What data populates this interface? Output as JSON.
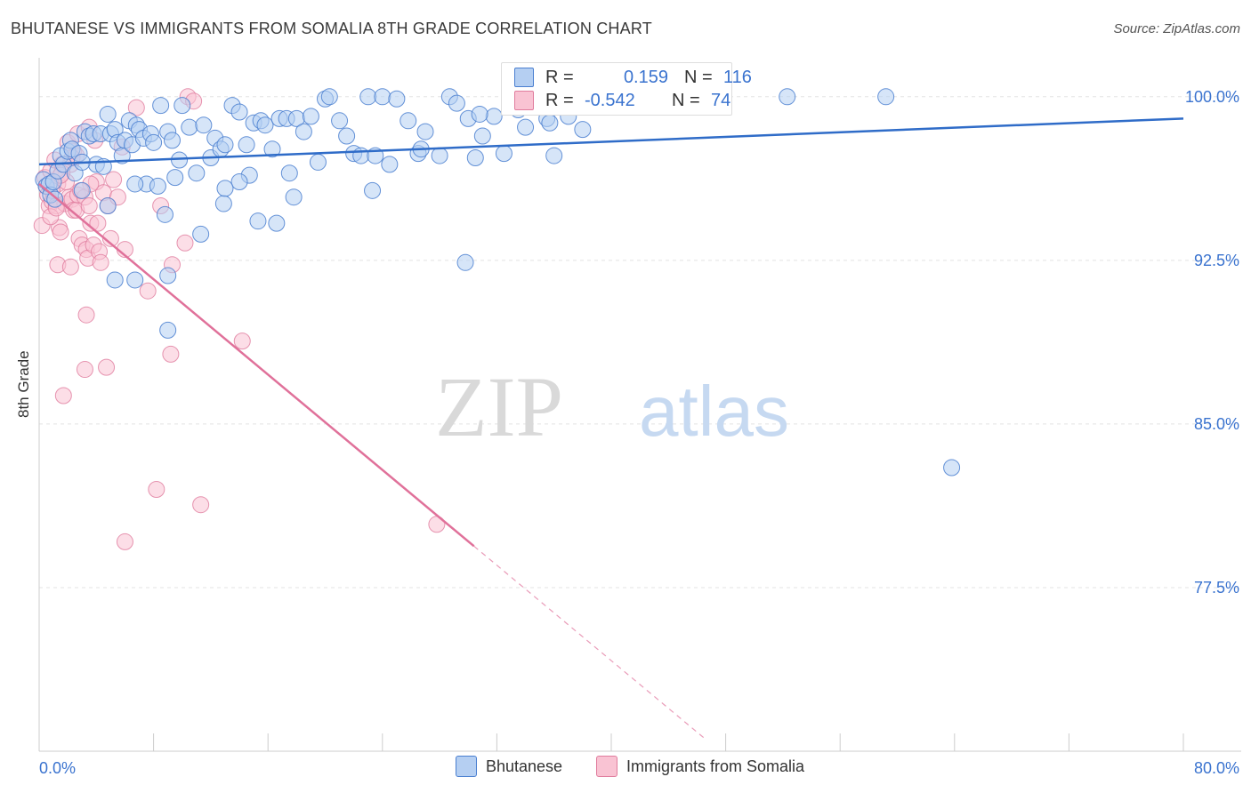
{
  "header": {
    "title": "BHUTANESE VS IMMIGRANTS FROM SOMALIA 8TH GRADE CORRELATION CHART",
    "source": "Source: ZipAtlas.com"
  },
  "stats": {
    "row1": {
      "r_label": "R =",
      "r_value": "0.159",
      "n_label": "N =",
      "n_value": "116"
    },
    "row2": {
      "r_label": "R =",
      "r_value": "-0.542",
      "n_label": "N =",
      "n_value": "74"
    }
  },
  "legend": {
    "series1": "Bhutanese",
    "series2": "Immigrants from Somalia"
  },
  "colors": {
    "blue_fill": "#b5cff2",
    "blue_stroke": "#4a7fd0",
    "blue_line": "#2f6cc8",
    "pink_fill": "#f9c3d3",
    "pink_stroke": "#e07c9d",
    "pink_line": "#e0719a",
    "axis_text": "#3a73cf"
  },
  "watermark": {
    "part1": "ZIP",
    "part2": "atlas"
  },
  "chart_data": {
    "type": "scatter",
    "title": "BHUTANESE VS IMMIGRANTS FROM SOMALIA 8TH GRADE CORRELATION CHART",
    "xlabel": "",
    "ylabel": "8th Grade",
    "xlim": [
      0,
      80
    ],
    "ylim": [
      70,
      101.5
    ],
    "x_tick_labels": [
      "0.0%",
      "80.0%"
    ],
    "y_ticks": [
      77.5,
      85.0,
      92.5,
      100.0
    ],
    "y_tick_labels": [
      "77.5%",
      "85.0%",
      "92.5%",
      "100.0%"
    ],
    "grid": true,
    "legend_position": "bottom",
    "series": [
      {
        "name": "Bhutanese",
        "color": "#b5cff2",
        "trend": {
          "x": [
            0,
            80
          ],
          "y": [
            96.9,
            99.0
          ],
          "dashed_from": null
        },
        "points": [
          [
            0.3,
            96.2
          ],
          [
            0.5,
            95.9
          ],
          [
            0.7,
            96.0
          ],
          [
            0.8,
            95.5
          ],
          [
            1.0,
            96.1
          ],
          [
            1.1,
            95.3
          ],
          [
            1.3,
            96.6
          ],
          [
            1.5,
            97.3
          ],
          [
            1.7,
            96.9
          ],
          [
            2.0,
            97.5
          ],
          [
            2.2,
            98.0
          ],
          [
            2.3,
            97.6
          ],
          [
            2.5,
            96.5
          ],
          [
            2.8,
            97.4
          ],
          [
            3.0,
            95.7
          ],
          [
            3.2,
            98.4
          ],
          [
            3.5,
            98.2
          ],
          [
            3.8,
            98.3
          ],
          [
            4.0,
            96.9
          ],
          [
            4.3,
            98.3
          ],
          [
            4.5,
            96.8
          ],
          [
            4.8,
            99.2
          ],
          [
            5.0,
            98.3
          ],
          [
            5.3,
            98.5
          ],
          [
            5.5,
            97.9
          ],
          [
            5.8,
            97.3
          ],
          [
            6.0,
            98.0
          ],
          [
            6.3,
            98.9
          ],
          [
            6.5,
            97.8
          ],
          [
            6.8,
            98.7
          ],
          [
            7.0,
            98.5
          ],
          [
            7.3,
            98.1
          ],
          [
            7.5,
            96.0
          ],
          [
            7.8,
            98.3
          ],
          [
            8.0,
            97.9
          ],
          [
            8.5,
            99.6
          ],
          [
            9.0,
            98.4
          ],
          [
            9.3,
            98.0
          ],
          [
            9.5,
            96.3
          ],
          [
            9.8,
            97.1
          ],
          [
            10.0,
            99.6
          ],
          [
            10.5,
            98.6
          ],
          [
            11.0,
            96.5
          ],
          [
            11.5,
            98.7
          ],
          [
            12.0,
            97.2
          ],
          [
            12.3,
            98.1
          ],
          [
            12.7,
            97.6
          ],
          [
            13.0,
            97.8
          ],
          [
            13.5,
            99.6
          ],
          [
            14.0,
            99.3
          ],
          [
            14.5,
            97.8
          ],
          [
            14.7,
            96.4
          ],
          [
            15.0,
            98.8
          ],
          [
            15.5,
            98.9
          ],
          [
            15.8,
            98.7
          ],
          [
            16.3,
            97.6
          ],
          [
            16.8,
            99.0
          ],
          [
            17.3,
            99.0
          ],
          [
            17.5,
            96.5
          ],
          [
            18.0,
            99.0
          ],
          [
            18.5,
            98.4
          ],
          [
            19.0,
            99.1
          ],
          [
            19.5,
            97.0
          ],
          [
            20.0,
            99.9
          ],
          [
            20.3,
            100.0
          ],
          [
            21.0,
            98.9
          ],
          [
            21.5,
            98.2
          ],
          [
            22.0,
            97.4
          ],
          [
            22.5,
            97.3
          ],
          [
            23.0,
            100.0
          ],
          [
            23.5,
            97.3
          ],
          [
            24.0,
            100.0
          ],
          [
            24.5,
            96.9
          ],
          [
            25.0,
            99.9
          ],
          [
            25.8,
            98.9
          ],
          [
            26.5,
            97.4
          ],
          [
            27.0,
            98.4
          ],
          [
            28.0,
            97.3
          ],
          [
            28.7,
            100.0
          ],
          [
            29.2,
            99.7
          ],
          [
            30.0,
            99.0
          ],
          [
            30.5,
            97.2
          ],
          [
            31.0,
            98.2
          ],
          [
            31.8,
            99.1
          ],
          [
            32.5,
            97.4
          ],
          [
            33.5,
            99.4
          ],
          [
            34.3,
            100.0
          ],
          [
            35.5,
            99.0
          ],
          [
            36.0,
            97.3
          ],
          [
            37.0,
            99.1
          ],
          [
            38.0,
            98.5
          ],
          [
            40.0,
            99.9
          ],
          [
            43.3,
            100.0
          ],
          [
            52.3,
            100.0
          ],
          [
            59.2,
            100.0
          ],
          [
            63.8,
            83.0
          ],
          [
            3.0,
            97.0
          ],
          [
            4.8,
            95.0
          ],
          [
            6.7,
            96.0
          ],
          [
            8.3,
            95.9
          ],
          [
            8.8,
            94.6
          ],
          [
            11.3,
            93.7
          ],
          [
            12.9,
            95.1
          ],
          [
            15.3,
            94.3
          ],
          [
            16.6,
            94.2
          ],
          [
            17.8,
            95.4
          ],
          [
            23.3,
            95.7
          ],
          [
            29.8,
            92.4
          ],
          [
            14.0,
            96.1
          ],
          [
            13.0,
            95.8
          ],
          [
            9.0,
            91.8
          ],
          [
            5.3,
            91.6
          ],
          [
            6.7,
            91.6
          ],
          [
            9.0,
            89.3
          ],
          [
            30.8,
            99.2
          ],
          [
            34.0,
            98.6
          ],
          [
            35.7,
            98.8
          ],
          [
            26.7,
            97.6
          ]
        ]
      },
      {
        "name": "Immigrants from Somalia",
        "color": "#f9c3d3",
        "trend": {
          "x": [
            0,
            30.4
          ],
          "y": [
            96.0,
            79.4
          ],
          "dashed_to": [
            46.5,
            70.6
          ]
        },
        "points": [
          [
            0.2,
            94.1
          ],
          [
            0.4,
            96.3
          ],
          [
            0.5,
            95.9
          ],
          [
            0.6,
            95.5
          ],
          [
            0.7,
            95.0
          ],
          [
            0.8,
            96.6
          ],
          [
            0.9,
            95.2
          ],
          [
            1.0,
            96.1
          ],
          [
            1.1,
            97.1
          ],
          [
            1.2,
            95.0
          ],
          [
            1.3,
            96.0
          ],
          [
            1.4,
            94.0
          ],
          [
            1.5,
            93.8
          ],
          [
            1.6,
            96.9
          ],
          [
            1.8,
            95.1
          ],
          [
            2.0,
            97.9
          ],
          [
            2.1,
            95.4
          ],
          [
            2.2,
            96.9
          ],
          [
            2.3,
            95.3
          ],
          [
            2.4,
            94.8
          ],
          [
            2.6,
            94.8
          ],
          [
            2.7,
            95.5
          ],
          [
            2.8,
            93.5
          ],
          [
            3.0,
            93.2
          ],
          [
            3.2,
            95.4
          ],
          [
            3.3,
            93.0
          ],
          [
            3.4,
            92.6
          ],
          [
            3.5,
            95.0
          ],
          [
            3.6,
            94.2
          ],
          [
            3.8,
            93.2
          ],
          [
            4.0,
            96.1
          ],
          [
            4.2,
            92.9
          ],
          [
            4.3,
            92.4
          ],
          [
            4.5,
            95.6
          ],
          [
            4.8,
            95.0
          ],
          [
            5.2,
            96.2
          ],
          [
            5.5,
            95.4
          ],
          [
            5.8,
            97.7
          ],
          [
            6.0,
            93.0
          ],
          [
            1.3,
            92.3
          ],
          [
            2.2,
            92.2
          ],
          [
            2.4,
            97.5
          ],
          [
            2.6,
            97.3
          ],
          [
            2.7,
            98.3
          ],
          [
            3.5,
            98.6
          ],
          [
            3.9,
            98.0
          ],
          [
            10.4,
            100.0
          ],
          [
            10.8,
            99.8
          ],
          [
            6.8,
            99.5
          ],
          [
            8.5,
            95.0
          ],
          [
            10.2,
            93.3
          ],
          [
            9.3,
            92.3
          ],
          [
            7.6,
            91.1
          ],
          [
            3.3,
            90.0
          ],
          [
            9.2,
            88.2
          ],
          [
            14.2,
            88.8
          ],
          [
            3.2,
            87.5
          ],
          [
            4.7,
            87.6
          ],
          [
            1.7,
            86.3
          ],
          [
            8.2,
            82.0
          ],
          [
            11.3,
            81.3
          ],
          [
            6.0,
            79.6
          ],
          [
            27.8,
            80.4
          ],
          [
            1.6,
            96.5
          ],
          [
            2.3,
            97.2
          ],
          [
            3.6,
            96.0
          ],
          [
            0.8,
            94.5
          ],
          [
            1.2,
            94.9
          ],
          [
            1.9,
            96.1
          ],
          [
            0.9,
            95.7
          ],
          [
            2.9,
            95.7
          ],
          [
            4.1,
            94.2
          ],
          [
            5.0,
            93.5
          ],
          [
            1.5,
            96.4
          ]
        ]
      }
    ]
  }
}
